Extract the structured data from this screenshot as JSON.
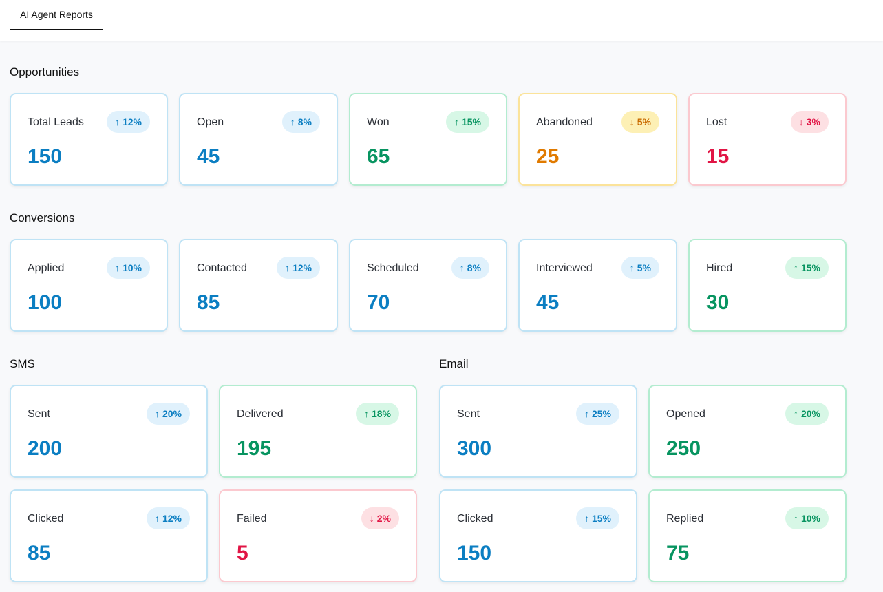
{
  "tabs": {
    "active": "AI Agent Reports"
  },
  "sections": {
    "opportunities": {
      "title": "Opportunities",
      "cards": [
        {
          "label": "Total Leads",
          "value": "150",
          "trend": "12%",
          "direction": "up",
          "color": "blue"
        },
        {
          "label": "Open",
          "value": "45",
          "trend": "8%",
          "direction": "up",
          "color": "blue"
        },
        {
          "label": "Won",
          "value": "65",
          "trend": "15%",
          "direction": "up",
          "color": "green"
        },
        {
          "label": "Abandoned",
          "value": "25",
          "trend": "5%",
          "direction": "down",
          "color": "amber"
        },
        {
          "label": "Lost",
          "value": "15",
          "trend": "3%",
          "direction": "down",
          "color": "red"
        }
      ]
    },
    "conversions": {
      "title": "Conversions",
      "cards": [
        {
          "label": "Applied",
          "value": "100",
          "trend": "10%",
          "direction": "up",
          "color": "blue"
        },
        {
          "label": "Contacted",
          "value": "85",
          "trend": "12%",
          "direction": "up",
          "color": "blue"
        },
        {
          "label": "Scheduled",
          "value": "70",
          "trend": "8%",
          "direction": "up",
          "color": "blue"
        },
        {
          "label": "Interviewed",
          "value": "45",
          "trend": "5%",
          "direction": "up",
          "color": "blue"
        },
        {
          "label": "Hired",
          "value": "30",
          "trend": "15%",
          "direction": "up",
          "color": "green"
        }
      ]
    },
    "sms": {
      "title": "SMS",
      "cards": [
        {
          "label": "Sent",
          "value": "200",
          "trend": "20%",
          "direction": "up",
          "color": "blue"
        },
        {
          "label": "Delivered",
          "value": "195",
          "trend": "18%",
          "direction": "up",
          "color": "green"
        },
        {
          "label": "Clicked",
          "value": "85",
          "trend": "12%",
          "direction": "up",
          "color": "blue"
        },
        {
          "label": "Failed",
          "value": "5",
          "trend": "2%",
          "direction": "down",
          "color": "red"
        }
      ]
    },
    "email": {
      "title": "Email",
      "cards": [
        {
          "label": "Sent",
          "value": "300",
          "trend": "25%",
          "direction": "up",
          "color": "blue"
        },
        {
          "label": "Opened",
          "value": "250",
          "trend": "20%",
          "direction": "up",
          "color": "green"
        },
        {
          "label": "Clicked",
          "value": "150",
          "trend": "15%",
          "direction": "up",
          "color": "blue"
        },
        {
          "label": "Replied",
          "value": "75",
          "trend": "10%",
          "direction": "up",
          "color": "green"
        }
      ]
    }
  },
  "icons": {
    "up": "arrow-up-icon",
    "down": "arrow-down-icon"
  },
  "colors": {
    "blue": "#0b7ec2",
    "green": "#079460",
    "amber": "#e07a00",
    "red": "#e11545"
  }
}
